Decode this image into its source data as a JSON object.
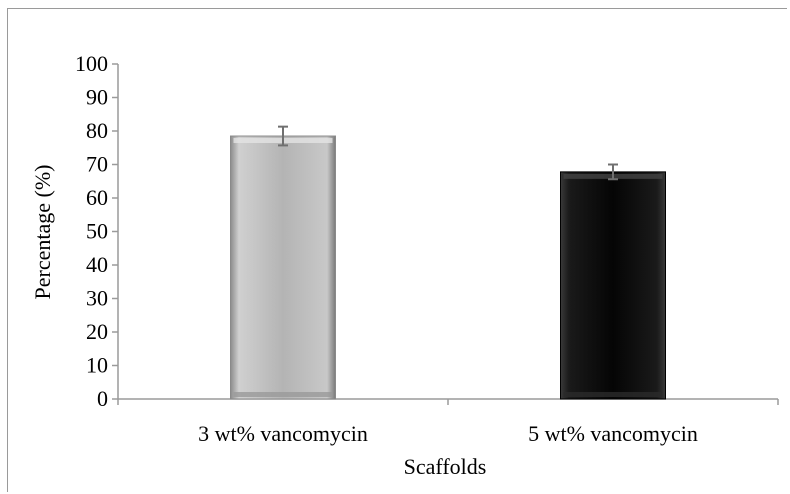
{
  "chart_data": {
    "type": "bar",
    "categories": [
      "3 wt% vancomycin",
      "5 wt% vancomycin"
    ],
    "values": [
      78.5,
      67.8
    ],
    "errors": [
      2.8,
      2.2
    ],
    "bar_colors": [
      "#b0b0b0",
      "#0a0a0a"
    ],
    "xlabel": "Scaffolds",
    "ylabel": "Percentage (%)",
    "ylim": [
      0,
      100
    ],
    "yticks": [
      0,
      10,
      20,
      30,
      40,
      50,
      60,
      70,
      80,
      90,
      100
    ],
    "grid": false,
    "legend": "none"
  }
}
